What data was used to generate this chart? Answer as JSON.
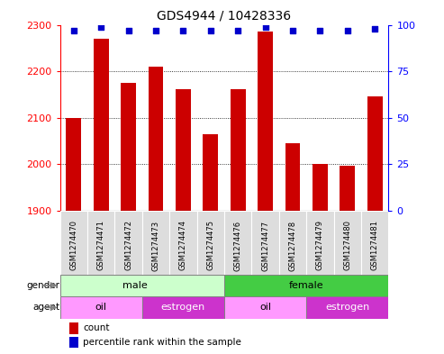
{
  "title": "GDS4944 / 10428336",
  "samples": [
    "GSM1274470",
    "GSM1274471",
    "GSM1274472",
    "GSM1274473",
    "GSM1274474",
    "GSM1274475",
    "GSM1274476",
    "GSM1274477",
    "GSM1274478",
    "GSM1274479",
    "GSM1274480",
    "GSM1274481"
  ],
  "counts": [
    2100,
    2270,
    2175,
    2210,
    2162,
    2065,
    2162,
    2285,
    2045,
    2000,
    1997,
    2145
  ],
  "percentile_ranks": [
    97,
    99,
    97,
    97,
    97,
    97,
    97,
    99,
    97,
    97,
    97,
    98
  ],
  "ylim_left": [
    1900,
    2300
  ],
  "ylim_right": [
    0,
    100
  ],
  "yticks_left": [
    1900,
    2000,
    2100,
    2200,
    2300
  ],
  "yticks_right": [
    0,
    25,
    50,
    75,
    100
  ],
  "bar_color": "#cc0000",
  "dot_color": "#0000cc",
  "male_color_light": "#ccffcc",
  "female_color_bright": "#44cc44",
  "oil_color": "#ff99ff",
  "estrogen_color": "#cc33cc",
  "sample_bg_color": "#dddddd",
  "legend_count_color": "#cc0000",
  "legend_pct_color": "#0000cc",
  "bar_width": 0.55,
  "n_samples": 12,
  "male_count": 6,
  "male_oil_count": 3,
  "female_oil_count": 3
}
